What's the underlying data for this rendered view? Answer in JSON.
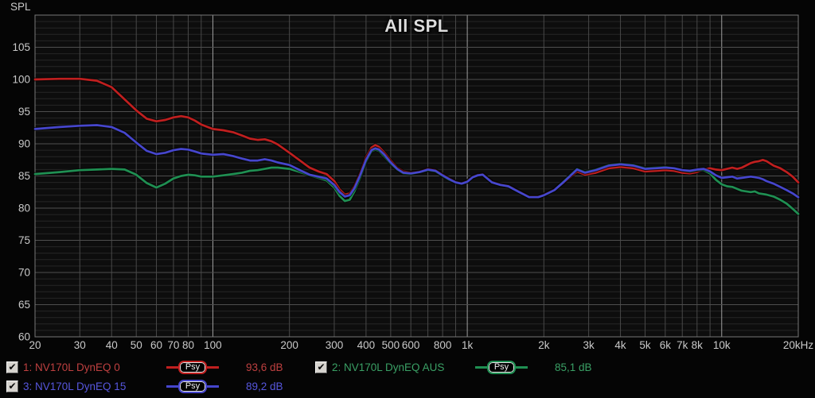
{
  "chart_data": {
    "type": "line",
    "title": "All SPL",
    "ylabel": "SPL",
    "x_unit": "Hz",
    "x_scale": "log",
    "xlim": [
      20,
      20000
    ],
    "ylim": [
      60,
      110
    ],
    "grid": {
      "y_major_step": 5,
      "y_minor_step": 1,
      "x_decade_highlight": [
        100,
        1000,
        10000
      ]
    },
    "yticks": [
      105,
      100,
      95,
      90,
      85,
      80,
      75,
      70,
      65,
      60
    ],
    "xticks": [
      {
        "f": 20,
        "label": "20"
      },
      {
        "f": 30,
        "label": "30"
      },
      {
        "f": 40,
        "label": "40"
      },
      {
        "f": 50,
        "label": "50"
      },
      {
        "f": 60,
        "label": "60"
      },
      {
        "f": 70,
        "label": "70"
      },
      {
        "f": 80,
        "label": "80"
      },
      {
        "f": 100,
        "label": "100"
      },
      {
        "f": 200,
        "label": "200"
      },
      {
        "f": 300,
        "label": "300"
      },
      {
        "f": 400,
        "label": "400"
      },
      {
        "f": 500,
        "label": "500"
      },
      {
        "f": 600,
        "label": "600"
      },
      {
        "f": 800,
        "label": "800"
      },
      {
        "f": 1000,
        "label": "1k"
      },
      {
        "f": 2000,
        "label": "2k"
      },
      {
        "f": 3000,
        "label": "3k"
      },
      {
        "f": 4000,
        "label": "4k"
      },
      {
        "f": 5000,
        "label": "5k"
      },
      {
        "f": 6000,
        "label": "6k"
      },
      {
        "f": 7000,
        "label": "7k"
      },
      {
        "f": 8000,
        "label": "8k"
      },
      {
        "f": 10000,
        "label": "10k"
      },
      {
        "f": 20000,
        "label": "20kHz"
      }
    ],
    "x": [
      20,
      25,
      30,
      35,
      40,
      45,
      50,
      55,
      60,
      65,
      70,
      75,
      80,
      85,
      90,
      100,
      110,
      120,
      130,
      140,
      150,
      160,
      170,
      180,
      200,
      220,
      240,
      260,
      280,
      300,
      315,
      330,
      345,
      360,
      380,
      400,
      420,
      435,
      450,
      470,
      500,
      530,
      560,
      600,
      650,
      700,
      750,
      800,
      850,
      900,
      950,
      1000,
      1050,
      1100,
      1150,
      1250,
      1350,
      1450,
      1600,
      1750,
      1900,
      2000,
      2200,
      2400,
      2700,
      2900,
      3200,
      3600,
      4000,
      4500,
      5000,
      5500,
      6000,
      6500,
      7000,
      7500,
      8000,
      8500,
      9000,
      9500,
      10000,
      10500,
      11000,
      11500,
      12000,
      13000,
      13500,
      14000,
      14500,
      15000,
      16000,
      17000,
      18000,
      19000,
      20000
    ],
    "series": [
      {
        "name": "1: NV170L DynEQ 0",
        "smoothing": "Psy",
        "legend_value": "93,6 dB",
        "color": "#c01f1f",
        "y": [
          100.0,
          100.1,
          100.1,
          99.8,
          98.8,
          96.9,
          95.2,
          93.9,
          93.5,
          93.7,
          94.1,
          94.3,
          94.1,
          93.6,
          93.0,
          92.3,
          92.1,
          91.8,
          91.3,
          90.8,
          90.6,
          90.7,
          90.4,
          89.9,
          88.6,
          87.4,
          86.3,
          85.7,
          85.3,
          84.2,
          82.9,
          82.1,
          82.3,
          83.4,
          85.5,
          87.9,
          89.4,
          89.8,
          89.5,
          88.7,
          87.4,
          86.3,
          85.7,
          85.5,
          85.7,
          86.1,
          85.9,
          85.2,
          84.6,
          84.1,
          83.9,
          84.2,
          84.9,
          85.2,
          85.3,
          84.1,
          83.7,
          83.5,
          82.6,
          81.8,
          81.8,
          82.1,
          82.9,
          84.0,
          85.7,
          85.2,
          85.5,
          86.2,
          86.4,
          86.2,
          85.7,
          85.8,
          85.9,
          85.8,
          85.5,
          85.4,
          85.6,
          86.0,
          86.2,
          86.0,
          85.9,
          86.1,
          86.3,
          86.1,
          86.3,
          87.0,
          87.2,
          87.3,
          87.5,
          87.3,
          86.6,
          86.2,
          85.6,
          84.9,
          84.0
        ]
      },
      {
        "name": "2: NV170L DynEQ AUS",
        "smoothing": "Psy",
        "legend_value": "85,1 dB",
        "color": "#1f8f52",
        "y": [
          85.3,
          85.6,
          85.9,
          86.0,
          86.1,
          86.0,
          85.2,
          83.9,
          83.2,
          83.8,
          84.6,
          85.0,
          85.2,
          85.1,
          84.9,
          84.9,
          85.1,
          85.3,
          85.5,
          85.8,
          85.9,
          86.1,
          86.3,
          86.3,
          86.1,
          85.6,
          85.1,
          84.7,
          84.3,
          83.2,
          81.9,
          81.1,
          81.3,
          82.6,
          84.8,
          87.2,
          88.8,
          89.1,
          88.9,
          88.1,
          86.9,
          86.0,
          85.4,
          85.3,
          85.6,
          85.9,
          85.7,
          85.0,
          84.4,
          84.0,
          83.8,
          84.1,
          84.8,
          85.1,
          85.2,
          84.0,
          83.6,
          83.4,
          82.5,
          81.7,
          81.7,
          82.0,
          82.8,
          84.2,
          86.1,
          85.6,
          86.0,
          86.7,
          86.9,
          86.7,
          86.2,
          86.3,
          86.4,
          86.2,
          85.9,
          85.7,
          85.9,
          85.9,
          85.4,
          84.4,
          83.7,
          83.4,
          83.3,
          83.0,
          82.7,
          82.5,
          82.6,
          82.3,
          82.2,
          82.1,
          81.8,
          81.3,
          80.7,
          79.9,
          79.1
        ]
      },
      {
        "name": "3: NV170L DynEQ 15",
        "smoothing": "Psy",
        "legend_value": "89,2 dB",
        "color": "#4646cd",
        "y": [
          92.3,
          92.6,
          92.8,
          92.9,
          92.6,
          91.7,
          90.2,
          88.9,
          88.4,
          88.6,
          89.0,
          89.2,
          89.1,
          88.8,
          88.5,
          88.3,
          88.4,
          88.1,
          87.7,
          87.4,
          87.4,
          87.6,
          87.4,
          87.1,
          86.7,
          85.9,
          85.2,
          84.9,
          84.6,
          83.6,
          82.5,
          81.8,
          82.0,
          83.1,
          85.2,
          87.5,
          89.0,
          89.3,
          89.1,
          88.4,
          87.1,
          86.1,
          85.5,
          85.4,
          85.6,
          86.0,
          85.8,
          85.1,
          84.5,
          84.0,
          83.8,
          84.1,
          84.8,
          85.1,
          85.2,
          84.0,
          83.6,
          83.4,
          82.5,
          81.7,
          81.7,
          82.0,
          82.8,
          84.1,
          86.0,
          85.5,
          85.9,
          86.6,
          86.8,
          86.6,
          86.1,
          86.2,
          86.3,
          86.2,
          85.9,
          85.8,
          86.0,
          86.1,
          85.7,
          85.1,
          84.7,
          84.8,
          84.9,
          84.6,
          84.7,
          84.9,
          84.8,
          84.7,
          84.5,
          84.2,
          83.8,
          83.3,
          82.8,
          82.3,
          81.7
        ]
      }
    ],
    "colors": {
      "plot_bg": "#0d0d0d",
      "minor_grid": "#262626",
      "major_grid": "#4e4e4e",
      "vert_grid": "#484848",
      "decade_grid": "#9e9e9e",
      "border": "#787878",
      "tick_text": "#c9c9c9",
      "title_text": "#dcdcdc"
    }
  },
  "legend": {
    "checkmark": "✔",
    "entries": [
      {
        "label": "1: NV170L DynEQ 0",
        "smoothing": "Psy",
        "value": "93,6 dB",
        "checked": true,
        "color": "#c01f1f",
        "text_color": "#bf4040"
      },
      {
        "label": "2: NV170L DynEQ AUS",
        "smoothing": "Psy",
        "value": "85,1 dB",
        "checked": true,
        "color": "#1f8f52",
        "text_color": "#3aa065"
      },
      {
        "label": "3: NV170L DynEQ 15",
        "smoothing": "Psy",
        "value": "89,2 dB",
        "checked": true,
        "color": "#4646cd",
        "text_color": "#5656dd"
      }
    ]
  }
}
